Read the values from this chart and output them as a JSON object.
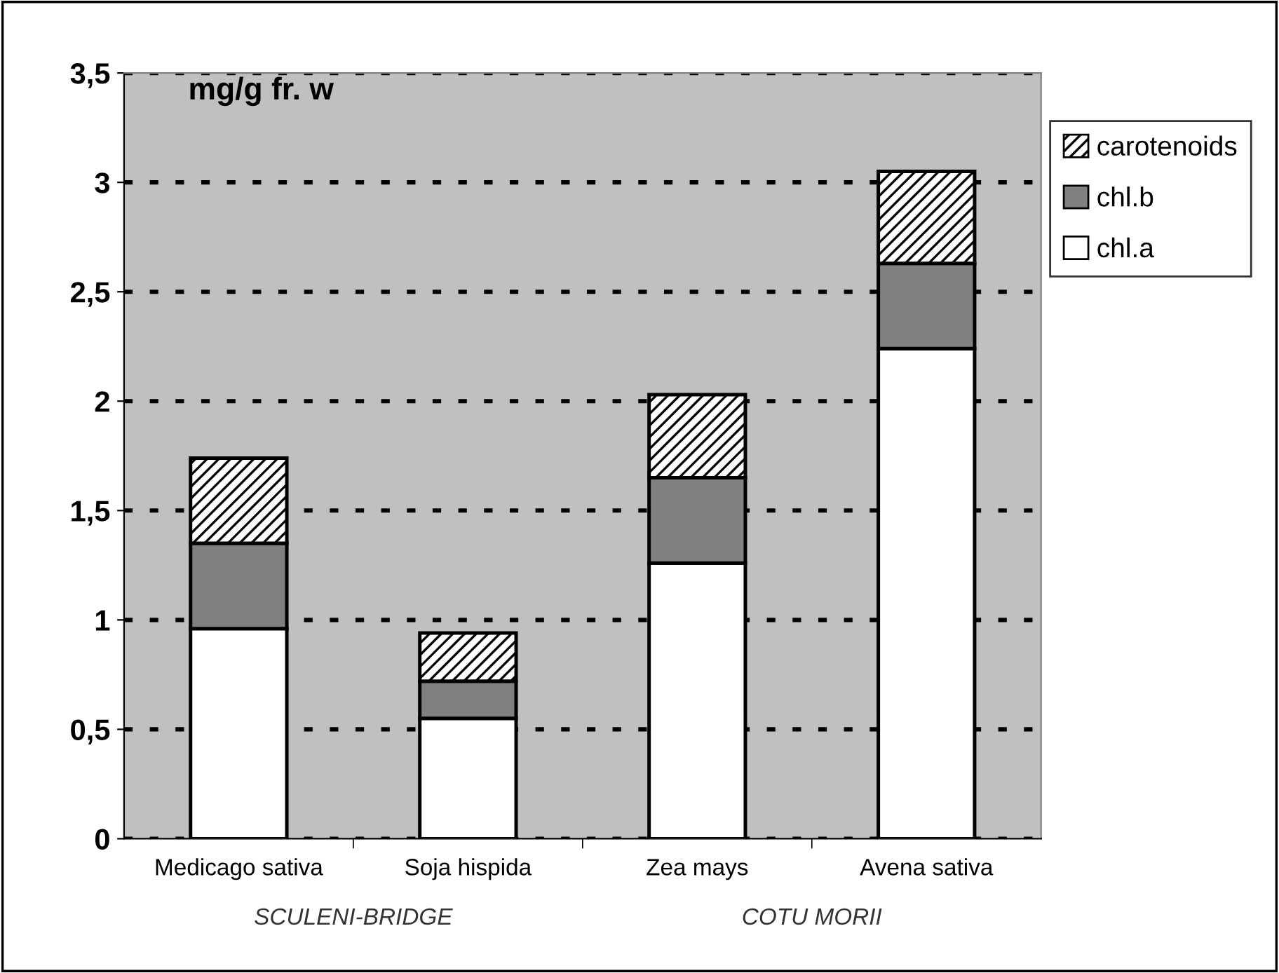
{
  "chart_data": {
    "type": "bar",
    "title": "mg/g fr. w",
    "stacked": true,
    "categories": [
      "Medicago sativa",
      "Soja hispida",
      "Zea mays",
      "Avena sativa"
    ],
    "series": [
      {
        "name": "chl.a",
        "color": "#ffffff",
        "values": [
          0.96,
          0.55,
          1.26,
          2.24
        ]
      },
      {
        "name": "chl.b",
        "color": "#808080",
        "values": [
          0.39,
          0.17,
          0.39,
          0.39
        ]
      },
      {
        "name": "carotenoids",
        "color": "#ffffff",
        "values": [
          0.39,
          0.22,
          0.38,
          0.42
        ]
      }
    ],
    "ylim": [
      0,
      3.5
    ],
    "yticks": [
      0,
      {
        "value": 0.5,
        "label": "0,5"
      },
      1,
      {
        "value": 1.5,
        "label": "1,5"
      },
      2,
      {
        "value": 2.5,
        "label": "2,5"
      },
      3,
      {
        "value": 3.5,
        "label": "3,5"
      }
    ],
    "grid": "y",
    "legend": "top right",
    "annotations": [
      "SCULENI-BRIDGE",
      "COTU MORII"
    ]
  }
}
